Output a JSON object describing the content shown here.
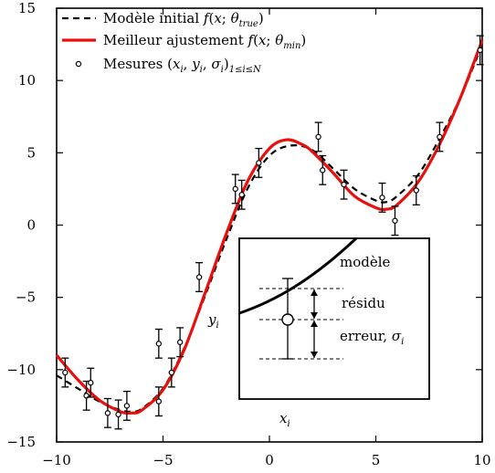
{
  "chart_data": {
    "type": "line",
    "title": "",
    "xlabel": "",
    "ylabel": "",
    "xlim": [
      -10,
      10
    ],
    "ylim": [
      -15,
      15
    ],
    "x_ticks": [
      -10,
      -5,
      0,
      5,
      10
    ],
    "y_ticks": [
      -15,
      -10,
      -5,
      0,
      5,
      10,
      15
    ],
    "x_tick_labels": [
      "−10",
      "−5",
      "0",
      "5",
      "10"
    ],
    "y_tick_labels": [
      "−15",
      "−10",
      "−5",
      "0",
      "5",
      "10",
      "15"
    ],
    "grid": false,
    "legend_position": "top-left",
    "legend": [
      {
        "key": "model",
        "prefix": "Modèle initial ",
        "math": "f(x; θ",
        "sub": "true",
        "suffix": ")"
      },
      {
        "key": "fit",
        "prefix": "Meilleur ajustement ",
        "math": "f(x; θ",
        "sub": "min",
        "suffix": ")"
      },
      {
        "key": "data",
        "prefix": "Mesures ",
        "math": "(x",
        "sub": "i",
        "suffix": ", y",
        "sub2": "i",
        "suffix2": ", σ",
        "sub3": "i",
        "suffix3": ")",
        "sub4": "1≤i≤N"
      }
    ],
    "series": [
      {
        "name": "Modèle initial",
        "style": "dashed",
        "color": "#000000",
        "x": [
          -10,
          -9,
          -8,
          -7,
          -6.5,
          -6,
          -5,
          -4,
          -3,
          -2,
          -1,
          0,
          1,
          2,
          3,
          4,
          5,
          5.5,
          6,
          7,
          8,
          9,
          10
        ],
        "y": [
          -10.4,
          -11.3,
          -12.2,
          -12.8,
          -12.9,
          -12.7,
          -11.3,
          -8.5,
          -4.8,
          -0.9,
          2.6,
          4.8,
          5.5,
          5.2,
          3.9,
          2.5,
          1.7,
          1.6,
          2.0,
          3.5,
          6.0,
          8.9,
          12.5
        ]
      },
      {
        "name": "Meilleur ajustement",
        "style": "solid",
        "color": "#e8100c",
        "x": [
          -10,
          -9,
          -8,
          -7,
          -6.5,
          -6,
          -5,
          -4,
          -3,
          -2,
          -1,
          0,
          0.8,
          1.5,
          2,
          3,
          4,
          5,
          5.5,
          6,
          7,
          8,
          9,
          10
        ],
        "y": [
          -9.0,
          -10.7,
          -12.1,
          -12.9,
          -13.0,
          -12.8,
          -11.4,
          -8.6,
          -4.6,
          -0.5,
          3.1,
          5.3,
          5.9,
          5.6,
          5.1,
          3.6,
          2.0,
          1.2,
          1.1,
          1.4,
          3.0,
          5.6,
          8.9,
          12.8
        ]
      }
    ],
    "measurements": [
      {
        "x": -9.6,
        "y": -10.2,
        "sigma": 1.0
      },
      {
        "x": -8.6,
        "y": -11.8,
        "sigma": 1.0
      },
      {
        "x": -8.4,
        "y": -10.9,
        "sigma": 1.0
      },
      {
        "x": -7.6,
        "y": -13.0,
        "sigma": 1.0
      },
      {
        "x": -7.1,
        "y": -13.1,
        "sigma": 1.0
      },
      {
        "x": -6.7,
        "y": -12.5,
        "sigma": 1.0
      },
      {
        "x": -5.2,
        "y": -12.2,
        "sigma": 1.0
      },
      {
        "x": -5.2,
        "y": -8.2,
        "sigma": 1.0
      },
      {
        "x": -4.6,
        "y": -10.2,
        "sigma": 1.0
      },
      {
        "x": -4.2,
        "y": -8.1,
        "sigma": 1.0
      },
      {
        "x": -3.3,
        "y": -3.6,
        "sigma": 1.0
      },
      {
        "x": -1.6,
        "y": 2.5,
        "sigma": 1.0
      },
      {
        "x": -1.3,
        "y": 2.1,
        "sigma": 1.0
      },
      {
        "x": -0.5,
        "y": 4.3,
        "sigma": 1.0
      },
      {
        "x": 2.3,
        "y": 6.1,
        "sigma": 1.0
      },
      {
        "x": 2.5,
        "y": 3.8,
        "sigma": 1.0
      },
      {
        "x": 3.5,
        "y": 2.8,
        "sigma": 1.0
      },
      {
        "x": 5.3,
        "y": 1.9,
        "sigma": 1.0
      },
      {
        "x": 5.9,
        "y": 0.3,
        "sigma": 1.0
      },
      {
        "x": 6.9,
        "y": 2.4,
        "sigma": 1.0
      },
      {
        "x": 8.0,
        "y": 6.1,
        "sigma": 1.0
      },
      {
        "x": 9.9,
        "y": 12.1,
        "sigma": 1.0
      }
    ],
    "inset": {
      "label_model": "modèle",
      "label_residual": "résidu",
      "label_error": "erreur, σ",
      "label_error_sub": "i",
      "label_y": "y",
      "label_y_sub": "i",
      "label_x": "x",
      "label_x_sub": "i"
    }
  }
}
